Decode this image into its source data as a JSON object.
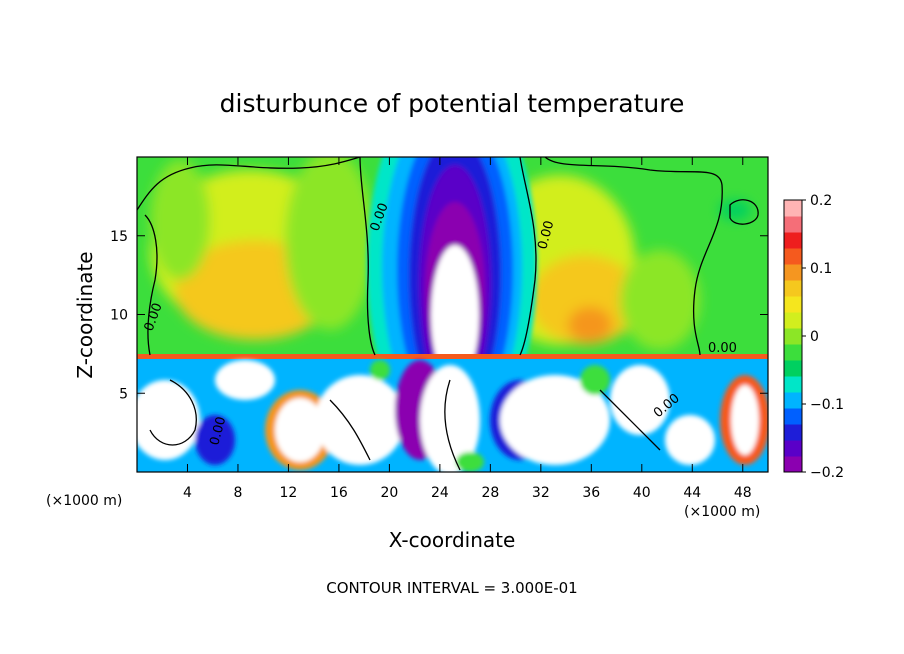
{
  "chart_data": {
    "type": "heatmap",
    "title": "disturbunce of potential temperature",
    "xlabel": "X-coordinate",
    "ylabel": "Z-coordinate",
    "x_unit": "(×1000 m)",
    "x_unit_right": "(×1000 m)",
    "xlim": [
      0,
      50
    ],
    "ylim": [
      0,
      20
    ],
    "x_ticks": [
      "4",
      "8",
      "12",
      "16",
      "20",
      "24",
      "28",
      "32",
      "36",
      "40",
      "44",
      "48"
    ],
    "y_ticks": [
      "5",
      "10",
      "15"
    ],
    "colorbar": {
      "range": [
        -0.2,
        0.2
      ],
      "ticks": [
        "0.2",
        "0.1",
        "0",
        "−0.1",
        "−0.2"
      ],
      "colors": [
        "#8b00b0",
        "#5a00c8",
        "#1e1ed8",
        "#0060ff",
        "#00b4ff",
        "#00e6c8",
        "#00d060",
        "#3cde3c",
        "#8ce626",
        "#d2ee1e",
        "#f5e61e",
        "#f5c81e",
        "#f59620",
        "#f55a1e",
        "#ee1e1e",
        "#f56e78",
        "#ffb4b4"
      ]
    },
    "contour_labels": [
      "0.00",
      "0.00",
      "0.00",
      "0.00",
      "0.00",
      "0.00"
    ],
    "footer": "CONTOUR INTERVAL = 3.000E-01"
  }
}
